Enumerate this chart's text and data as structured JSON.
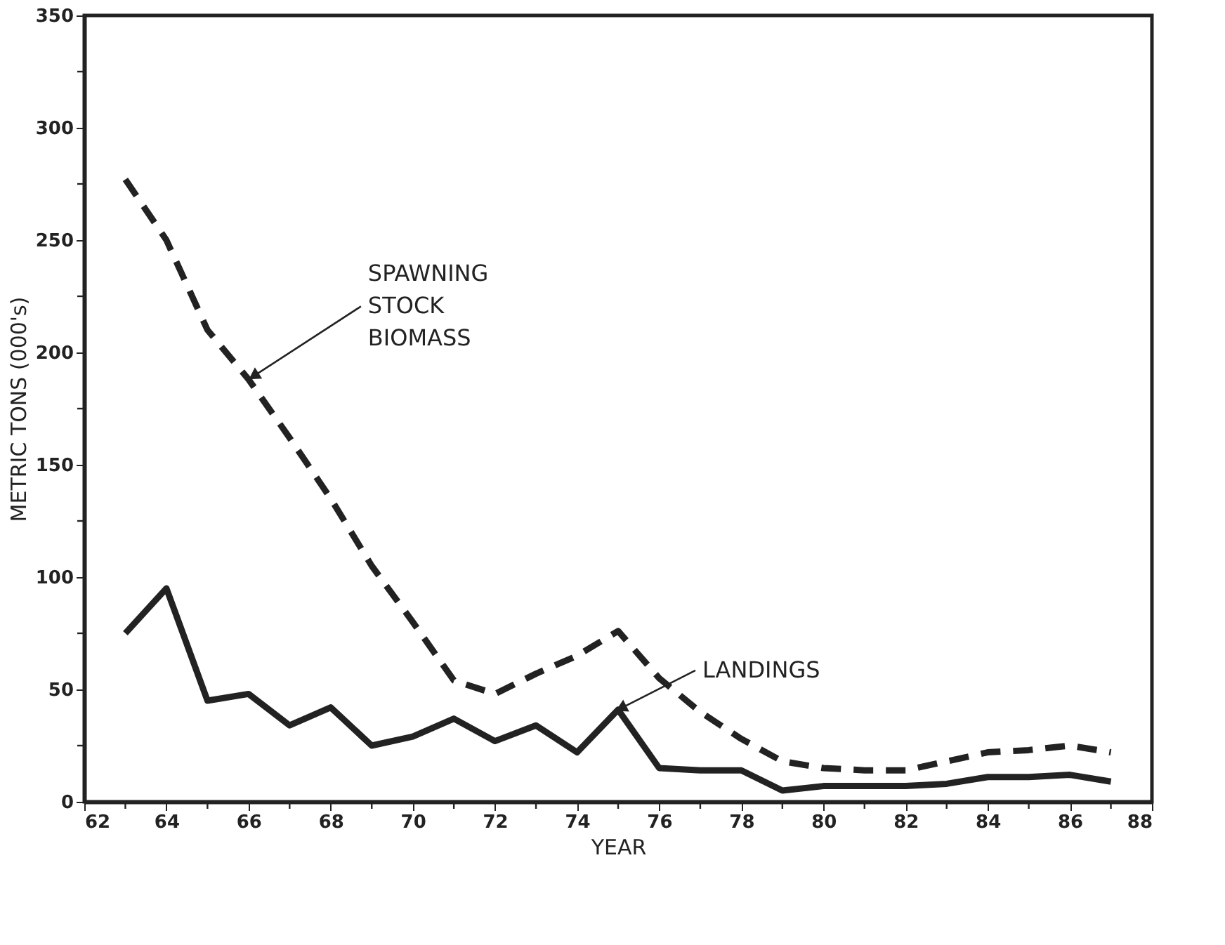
{
  "chart_data": {
    "type": "line",
    "xlabel": "YEAR",
    "ylabel": "METRIC TONS (000's)",
    "x": [
      63,
      64,
      65,
      66,
      67,
      68,
      69,
      70,
      71,
      72,
      73,
      74,
      75,
      76,
      77,
      78,
      79,
      80,
      81,
      82,
      83,
      84,
      85,
      86,
      87
    ],
    "series": [
      {
        "color": "#222222",
        "line_style": "dashed",
        "values": [
          277,
          250,
          210,
          188,
          162,
          135,
          105,
          80,
          54,
          48,
          57,
          65,
          76,
          55,
          40,
          28,
          18,
          15,
          14,
          14,
          18,
          22,
          23,
          25,
          22
        ]
      },
      {
        "color": "#222222",
        "line_style": "solid",
        "values": [
          75,
          95,
          45,
          48,
          34,
          42,
          25,
          29,
          37,
          27,
          34,
          22,
          41,
          15,
          14,
          14,
          5,
          7,
          7,
          7,
          8,
          11,
          11,
          12,
          9
        ]
      }
    ],
    "annotations": [
      {
        "text": "SPAWNING\nSTOCK\nBIOMASS",
        "x": 66,
        "y": 188
      },
      {
        "text": "LANDINGS",
        "x": 75,
        "y": 41
      }
    ],
    "xlim": [
      62,
      88
    ],
    "ylim": [
      0,
      350
    ],
    "xticks": [
      62,
      {
        "value": 63,
        "label": null
      },
      64,
      {
        "value": 65,
        "label": null
      },
      66,
      {
        "value": 67,
        "label": null
      },
      68,
      {
        "value": 69,
        "label": null
      },
      70,
      {
        "value": 71,
        "label": null
      },
      72,
      {
        "value": 73,
        "label": null
      },
      74,
      {
        "value": 75,
        "label": null
      },
      76,
      {
        "value": 77,
        "label": null
      },
      78,
      {
        "value": 79,
        "label": null
      },
      80,
      {
        "value": 81,
        "label": null
      },
      82,
      {
        "value": 83,
        "label": null
      },
      84,
      {
        "value": 85,
        "label": null
      },
      86,
      {
        "value": 87,
        "label": null
      },
      88
    ],
    "yticks": [
      0,
      {
        "value": 25,
        "label": null
      },
      50,
      {
        "value": 75,
        "label": null
      },
      100,
      {
        "value": 125,
        "label": null
      },
      150,
      {
        "value": 175,
        "label": null
      },
      200,
      {
        "value": 225,
        "label": null
      },
      250,
      {
        "value": 275,
        "label": null
      },
      300,
      {
        "value": 325,
        "label": null
      },
      350
    ],
    "grid": false
  }
}
